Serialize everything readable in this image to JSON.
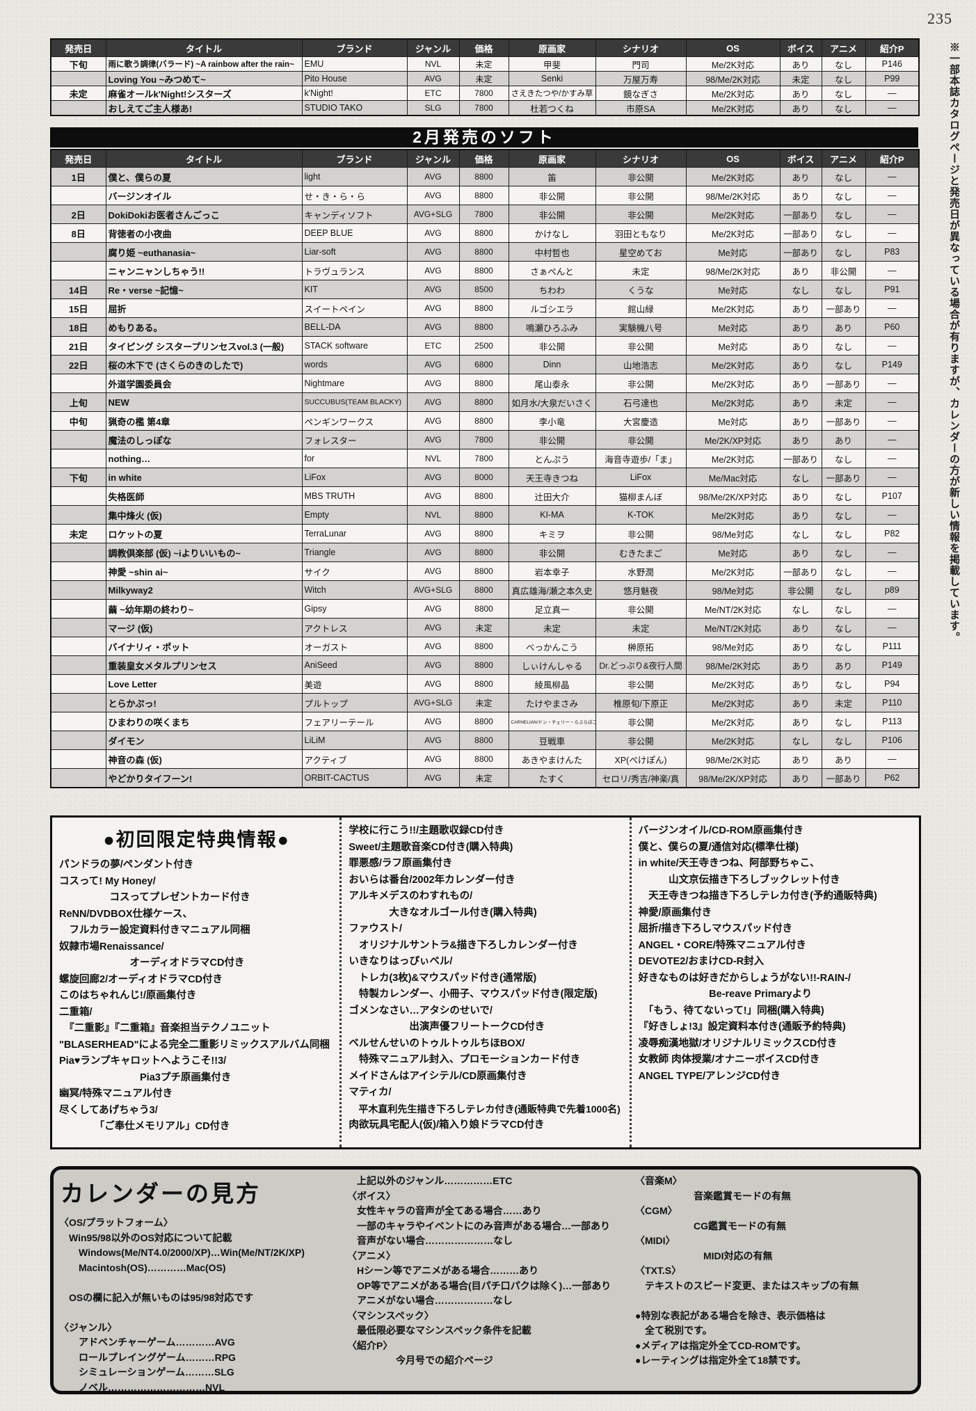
{
  "page": {
    "number": "235",
    "side_note": "※一部本誌カタログページと発売日が異なっている場合が有りますが、カレンダーの方が新しい情報を掲載しています。"
  },
  "table_headers": [
    "発売日",
    "タイトル",
    "ブランド",
    "ジャンル",
    "価格",
    "原画家",
    "シナリオ",
    "OS",
    "ボイス",
    "アニメ",
    "紹介P"
  ],
  "top_table": {
    "rows": [
      {
        "date": "下旬",
        "title": "雨に歌う調律(バラード) ~A rainbow after the rain~",
        "brand": "EMU",
        "genre": "NVL",
        "price": "未定",
        "artist": "甲斐",
        "scenario": "門司",
        "os": "Me/2K対応",
        "voice": "あり",
        "anime": "なし",
        "page": "P146"
      },
      {
        "date": "",
        "title": "Loving You ~みつめて~",
        "brand": "Pito House",
        "genre": "AVG",
        "price": "未定",
        "artist": "Senki",
        "scenario": "万屋万寿",
        "os": "98/Me/2K対応",
        "voice": "未定",
        "anime": "なし",
        "page": "P99"
      },
      {
        "date": "未定",
        "title": "麻雀オールk'Night!シスターズ",
        "brand": "k'Night!",
        "genre": "ETC",
        "price": "7800",
        "artist": "さえきたつや/かすみ草",
        "scenario": "鏡なぎさ",
        "os": "Me/2K対応",
        "voice": "あり",
        "anime": "なし",
        "page": "—"
      },
      {
        "date": "",
        "title": "おしえてご主人様あ!",
        "brand": "STUDIO TAKO",
        "genre": "SLG",
        "price": "7800",
        "artist": "杜若つくね",
        "scenario": "市原SA",
        "os": "Me/2K対応",
        "voice": "あり",
        "anime": "なし",
        "page": "—"
      }
    ]
  },
  "february": {
    "banner": "2月発売のソフト",
    "rows": [
      {
        "date": "1日",
        "title": "僕と、僕らの夏",
        "brand": "light",
        "genre": "AVG",
        "price": "8800",
        "artist": "笛",
        "scenario": "非公開",
        "os": "Me/2K対応",
        "voice": "あり",
        "anime": "なし",
        "page": "—"
      },
      {
        "date": "",
        "title": "バージンオイル",
        "brand": "せ・き・ら・ら",
        "genre": "AVG",
        "price": "8800",
        "artist": "非公開",
        "scenario": "非公開",
        "os": "98/Me/2K対応",
        "voice": "あり",
        "anime": "なし",
        "page": "—"
      },
      {
        "date": "2日",
        "title": "DokiDokiお医者さんごっこ",
        "brand": "キャンディソフト",
        "genre": "AVG+SLG",
        "price": "7800",
        "artist": "非公開",
        "scenario": "非公開",
        "os": "Me/2K対応",
        "voice": "一部あり",
        "anime": "なし",
        "page": "—"
      },
      {
        "date": "8日",
        "title": "背徳者の小夜曲",
        "brand": "DEEP BLUE",
        "genre": "AVG",
        "price": "8800",
        "artist": "かけなし",
        "scenario": "羽田ともなり",
        "os": "Me/2K対応",
        "voice": "一部あり",
        "anime": "なし",
        "page": "—"
      },
      {
        "date": "",
        "title": "腐り姫 ~euthanasia~",
        "brand": "Liar-soft",
        "genre": "AVG",
        "price": "8800",
        "artist": "中村哲也",
        "scenario": "星空めてお",
        "os": "Me対応",
        "voice": "一部あり",
        "anime": "なし",
        "page": "P83"
      },
      {
        "date": "",
        "title": "ニャンニャンしちゃう!!",
        "brand": "トラヴュランス",
        "genre": "AVG",
        "price": "8800",
        "artist": "さぁぺんと",
        "scenario": "未定",
        "os": "98/Me/2K対応",
        "voice": "あり",
        "anime": "非公開",
        "page": "—"
      },
      {
        "date": "14日",
        "title": "Re・verse ~記憶~",
        "brand": "KIT",
        "genre": "AVG",
        "price": "8500",
        "artist": "ちわわ",
        "scenario": "くうな",
        "os": "Me対応",
        "voice": "なし",
        "anime": "なし",
        "page": "P91"
      },
      {
        "date": "15日",
        "title": "屈折",
        "brand": "スイートペイン",
        "genre": "AVG",
        "price": "8800",
        "artist": "ルゴシエラ",
        "scenario": "館山緑",
        "os": "Me/2K対応",
        "voice": "あり",
        "anime": "一部あり",
        "page": "—"
      },
      {
        "date": "18日",
        "title": "めもりある。",
        "brand": "BELL-DA",
        "genre": "AVG",
        "price": "8800",
        "artist": "鳴瀬ひろふみ",
        "scenario": "実験機八号",
        "os": "Me対応",
        "voice": "あり",
        "anime": "あり",
        "page": "P60"
      },
      {
        "date": "21日",
        "title": "タイピング シスタープリンセスvol.3 (一般)",
        "brand": "STACK software",
        "genre": "ETC",
        "price": "2500",
        "artist": "非公開",
        "scenario": "非公開",
        "os": "Me対応",
        "voice": "あり",
        "anime": "なし",
        "page": "—"
      },
      {
        "date": "22日",
        "title": "桜の木下で (さくらのきのしたで)",
        "brand": "words",
        "genre": "AVG",
        "price": "6800",
        "artist": "Dinn",
        "scenario": "山地浩志",
        "os": "Me/2K対応",
        "voice": "あり",
        "anime": "なし",
        "page": "P149"
      },
      {
        "date": "",
        "title": "外道学園委員会",
        "brand": "Nightmare",
        "genre": "AVG",
        "price": "8800",
        "artist": "尾山泰永",
        "scenario": "非公開",
        "os": "Me/2K対応",
        "voice": "あり",
        "anime": "一部あり",
        "page": "—"
      },
      {
        "date": "上旬",
        "title": "NEW",
        "brand": "SUCCUBUS(TEAM BLACKY)",
        "genre": "AVG",
        "price": "8800",
        "artist": "如月水/大泉だいさく",
        "scenario": "石弓達也",
        "os": "Me/2K対応",
        "voice": "あり",
        "anime": "未定",
        "page": "—"
      },
      {
        "date": "中旬",
        "title": "猟奇の檻 第4章",
        "brand": "ペンギンワークス",
        "genre": "AVG",
        "price": "8800",
        "artist": "李小竜",
        "scenario": "大宮慶造",
        "os": "Me対応",
        "voice": "あり",
        "anime": "一部あり",
        "page": "—"
      },
      {
        "date": "",
        "title": "魔法のしっぽな",
        "brand": "フォレスター",
        "genre": "AVG",
        "price": "7800",
        "artist": "非公開",
        "scenario": "非公開",
        "os": "Me/2K/XP対応",
        "voice": "あり",
        "anime": "あり",
        "page": "—"
      },
      {
        "date": "",
        "title": "nothing…",
        "brand": "for",
        "genre": "NVL",
        "price": "7800",
        "artist": "とんぷう",
        "scenario": "海音寺遊歩/「ま」",
        "os": "Me/2K対応",
        "voice": "一部あり",
        "anime": "なし",
        "page": "—"
      },
      {
        "date": "下旬",
        "title": "in white",
        "brand": "LiFox",
        "genre": "AVG",
        "price": "8000",
        "artist": "天王寺きつね",
        "scenario": "LiFox",
        "os": "Me/Mac対応",
        "voice": "なし",
        "anime": "一部あり",
        "page": "—"
      },
      {
        "date": "",
        "title": "失格医師",
        "brand": "MBS TRUTH",
        "genre": "AVG",
        "price": "8800",
        "artist": "辻田大介",
        "scenario": "猫柳まんぼ",
        "os": "98/Me/2K/XP対応",
        "voice": "あり",
        "anime": "なし",
        "page": "P107"
      },
      {
        "date": "",
        "title": "集中烽火 (仮)",
        "brand": "Empty",
        "genre": "NVL",
        "price": "8800",
        "artist": "KI-MA",
        "scenario": "K-TOK",
        "os": "Me/2K対応",
        "voice": "あり",
        "anime": "なし",
        "page": "—"
      },
      {
        "date": "未定",
        "title": "ロケットの夏",
        "brand": "TerraLunar",
        "genre": "AVG",
        "price": "8800",
        "artist": "キミヲ",
        "scenario": "非公開",
        "os": "98/Me対応",
        "voice": "なし",
        "anime": "なし",
        "page": "P82"
      },
      {
        "date": "",
        "title": "調教倶楽部 (仮) ~iよりいいもの~",
        "brand": "Triangle",
        "genre": "AVG",
        "price": "8800",
        "artist": "非公開",
        "scenario": "むきたまご",
        "os": "Me対応",
        "voice": "あり",
        "anime": "なし",
        "page": "—"
      },
      {
        "date": "",
        "title": "神愛 ~shin ai~",
        "brand": "サイク",
        "genre": "AVG",
        "price": "8800",
        "artist": "岩本幸子",
        "scenario": "水野潤",
        "os": "Me/2K対応",
        "voice": "一部あり",
        "anime": "なし",
        "page": "—"
      },
      {
        "date": "",
        "title": "Milkyway2",
        "brand": "Witch",
        "genre": "AVG+SLG",
        "price": "8800",
        "artist": "真広雄海/瀬之本久史",
        "scenario": "悠月魅夜",
        "os": "98/Me対応",
        "voice": "非公開",
        "anime": "なし",
        "page": "p89"
      },
      {
        "date": "",
        "title": "繭 ~幼年期の終わり~",
        "brand": "Gipsy",
        "genre": "AVG",
        "price": "8800",
        "artist": "足立真一",
        "scenario": "非公開",
        "os": "Me/NT/2K対応",
        "voice": "なし",
        "anime": "なし",
        "page": "—"
      },
      {
        "date": "",
        "title": "マージ (仮)",
        "brand": "アクトレス",
        "genre": "AVG",
        "price": "未定",
        "artist": "未定",
        "scenario": "未定",
        "os": "Me/NT/2K対応",
        "voice": "あり",
        "anime": "なし",
        "page": "—"
      },
      {
        "date": "",
        "title": "バイナリィ・ポット",
        "brand": "オーガスト",
        "genre": "AVG",
        "price": "8800",
        "artist": "べっかんこう",
        "scenario": "榊原拓",
        "os": "98/Me対応",
        "voice": "あり",
        "anime": "なし",
        "page": "P111"
      },
      {
        "date": "",
        "title": "重装皇女メタルプリンセス",
        "brand": "AniSeed",
        "genre": "AVG",
        "price": "8800",
        "artist": "しぃけんしゃる",
        "scenario": "Dr.どっぷり&夜行人間",
        "os": "98/Me/2K対応",
        "voice": "あり",
        "anime": "あり",
        "page": "P149"
      },
      {
        "date": "",
        "title": "Love Letter",
        "brand": "美遊",
        "genre": "AVG",
        "price": "8800",
        "artist": "綾風柳晶",
        "scenario": "非公開",
        "os": "Me/2K対応",
        "voice": "あり",
        "anime": "なし",
        "page": "P94"
      },
      {
        "date": "",
        "title": "とらかぷっ!",
        "brand": "プルトップ",
        "genre": "AVG+SLG",
        "price": "未定",
        "artist": "たけやまさみ",
        "scenario": "椎原旬/下原正",
        "os": "Me/2K対応",
        "voice": "あり",
        "anime": "未定",
        "page": "P110"
      },
      {
        "date": "",
        "title": "ひまわりの咲くまち",
        "brand": "フェアリーテール",
        "genre": "AVG",
        "price": "8800",
        "artist": "CARNELIAN/ドン・チェリー・らぶらぽこデザイン",
        "scenario": "非公開",
        "os": "Me/2K対応",
        "voice": "あり",
        "anime": "なし",
        "page": "P113"
      },
      {
        "date": "",
        "title": "ダイモン",
        "brand": "LiLiM",
        "genre": "AVG",
        "price": "8800",
        "artist": "豆戦車",
        "scenario": "非公開",
        "os": "Me/2K対応",
        "voice": "なし",
        "anime": "なし",
        "page": "P106"
      },
      {
        "date": "",
        "title": "神音の森 (仮)",
        "brand": "アクティブ",
        "genre": "AVG",
        "price": "8800",
        "artist": "あきやまけんた",
        "scenario": "XP(ぺけぽん)",
        "os": "98/Me/2K対応",
        "voice": "あり",
        "anime": "あり",
        "page": "—"
      },
      {
        "date": "",
        "title": "やどかりタイフーン!",
        "brand": "ORBIT-CACTUS",
        "genre": "AVG",
        "price": "未定",
        "artist": "たすく",
        "scenario": "セロリ/秀吉/神楽/真",
        "os": "98/Me/2K/XP対応",
        "voice": "あり",
        "anime": "一部あり",
        "page": "P62"
      }
    ]
  },
  "bonus_box": {
    "title": "●初回限定特典情報●",
    "col1": [
      "パンドラの夢/ペンダント付き",
      "コスって! My Honey/",
      "　　　　　コスってプレゼントカード付き",
      "ReNN/DVDBOX仕様ケース、",
      "　フルカラー設定資料付きマニュアル同梱",
      "奴隷市場Renaissance/",
      "　　　　　　　オーディオドラマCD付き",
      "螺旋回廊2/オーディオドラマCD付き",
      "このはちゃれんじ!/原画集付き",
      "二重箱/",
      "　『二重影』『二重箱』音楽担当テクノユニット",
      "\"BLASERHEAD\"による完全二重影リミックスアルバム同梱",
      "Pia♥ランプキャロットへようこそ!!3/",
      "　　　　　　　　Pia3プチ原画集付き",
      "幽冥/特殊マニュアル付き",
      "尽くしてあげちゃう3/",
      "　　　　「ご奉仕メモリアル」CD付き"
    ],
    "col2": [
      "学校に行こう!!/主題歌収録CD付き",
      "Sweet/主題歌音楽CD付き(購入特典)",
      "罪悪感/ラフ原画集付き",
      "おいらは番台/2002年カレンダー付き",
      "アルキメデスのわすれもの/",
      "　　　　大きなオルゴール付き(購入特典)",
      "ファウスト/",
      "　オリジナルサントラ&描き下ろしカレンダー付き",
      "いきなりはっぴぃベル/",
      "　トレカ(3枚)&マウスパッド付き(通常版)",
      "　特製カレンダー、小冊子、マウスパッド付き(限定版)",
      "ゴメンなさい…アタシのせいで/",
      "　　　　　　出演声優フリートークCD付き",
      "ベルせんせいのトゥルトゥルちほBOX/",
      "　特殊マニュアル封入、プロモーションカード付き",
      "メイドさんはアイシテル/CD原画集付き",
      "マティカ/",
      "　平木直利先生描き下ろしテレカ付き(通販特典で先着1000名)",
      "肉欲玩具宅配人(仮)/箱入り娘ドラマCD付き"
    ],
    "col3": [
      "バージンオイル/CD-ROM原画集付き",
      "僕と、僕らの夏/通信対応(標準仕様)",
      "in white/天王寺きつね、阿部野ちゃこ、",
      "　　　山文京伝描き下ろしブックレット付き",
      "　天王寺きつね描き下ろしテレカ付き(予約通販特典)",
      "神愛/原画集付き",
      "屈折/描き下ろしマウスパッド付き",
      "ANGEL・CORE/特殊マニュアル付き",
      "DEVOTE2/おまけCD-R封入",
      "好きなものは好きだからしょうがない!!-RAIN-/",
      "　　　　　　　Be-reave Primaryより",
      "　「もう、待てないって!」同梱(購入特典)",
      "『好きしょ!3』設定資料本付き(通販予約特典)",
      "凌辱痴漢地獄/オリジナルリミックスCD付き",
      "女教師 肉体授業/オナニーボイスCD付き",
      "ANGEL TYPE/アレンジCD付き"
    ]
  },
  "legend_box": {
    "title": "カレンダーの見方",
    "col1": [
      "〈OS/プラットフォーム〉",
      "　Win95/98以外のOS対応について記載",
      "　　Windows(Me/NT4.0/2000/XP)…Win(Me/NT/2K/XP)",
      "　　Macintosh(OS)…………Mac(OS)",
      "",
      "　OSの欄に記入が無いものは95/98対応です",
      "",
      "〈ジャンル〉",
      "　　アドベンチャーゲーム…………AVG",
      "　　ロールプレイングゲーム………RPG",
      "　　シミュレーションゲーム………SLG",
      "　　ノベル…………………………NVL"
    ],
    "col2": [
      "　上記以外のジャンル……………ETC",
      "〈ボイス〉",
      "　女性キャラの音声が全てある場合……あり",
      "　一部のキャラやイベントにのみ音声がある場合…一部あり",
      "　音声がない場合…………………なし",
      "〈アニメ〉",
      "　Hシーン等でアニメがある場合………あり",
      "　OP等でアニメがある場合(目パチ口パクは除く)…一部あり",
      "　アニメがない場合………………なし",
      "〈マシンスペック〉",
      "　最低限必要なマシンスペック条件を記載",
      "〈紹介P〉",
      "　　　　　今月号での紹介ページ"
    ],
    "col3": [
      "〈音楽M〉",
      "　　　　　　音楽鑑賞モードの有無",
      "〈CGM〉",
      "　　　　　　CG鑑賞モードの有無",
      "〈MIDI〉",
      "　　　　　　　MIDI対応の有無",
      "〈TXT.S〉",
      "　テキストのスピード変更、またはスキップの有無",
      "",
      "●特別な表記がある場合を除き、表示価格は",
      "　全て税別です。",
      "●メディアは指定外全てCD-ROMです。",
      "●レーティングは指定外全て18禁です。"
    ]
  }
}
